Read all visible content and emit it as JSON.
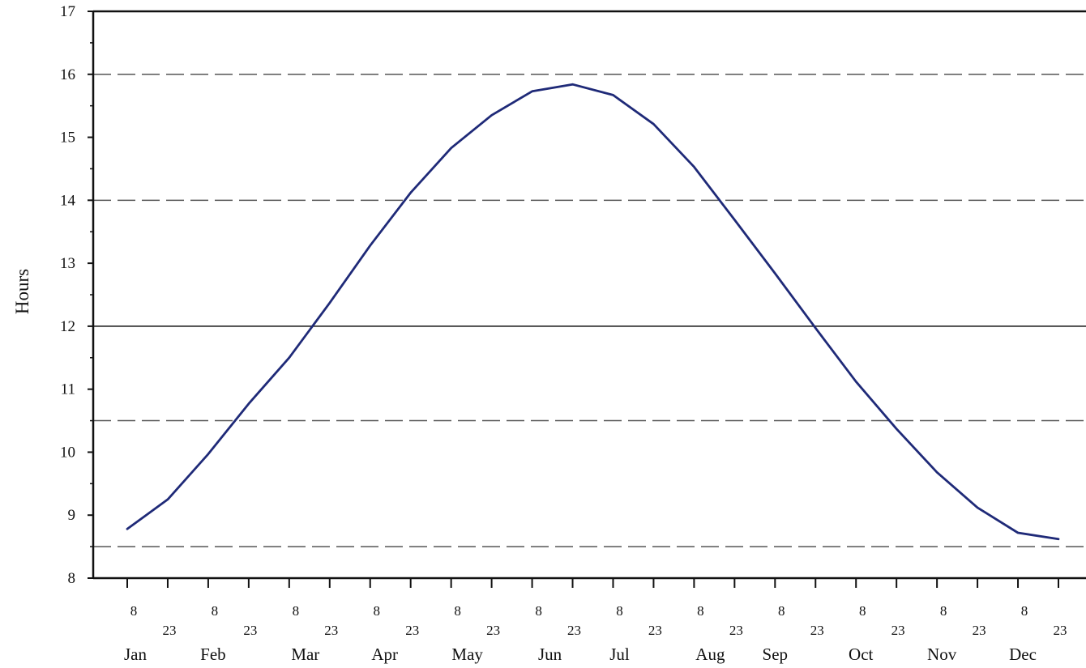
{
  "chart_data": {
    "type": "line",
    "title": "",
    "xlabel": "",
    "ylabel": "Hours",
    "ylim": [
      8,
      17
    ],
    "yticks": [
      "8",
      "9",
      "10",
      "11",
      "12",
      "13",
      "14",
      "15",
      "16",
      "17"
    ],
    "x_tick_days": [
      "8",
      "23",
      "8",
      "23",
      "8",
      "23",
      "8",
      "23",
      "8",
      "23",
      "8",
      "23",
      "8",
      "23",
      "8",
      "23",
      "8",
      "23",
      "8",
      "23",
      "8",
      "23",
      "8",
      "23"
    ],
    "months": [
      "Jan",
      "Feb",
      "Mar",
      "Apr",
      "May",
      "Jun",
      "Jul",
      "Aug",
      "Sep",
      "Oct",
      "Nov",
      "Dec"
    ],
    "reference_lines": [
      {
        "y": 16,
        "style": "dashed"
      },
      {
        "y": 14,
        "style": "dashed"
      },
      {
        "y": 12,
        "style": "solid"
      },
      {
        "y": 10.5,
        "style": "dashed"
      },
      {
        "y": 8.5,
        "style": "dashed"
      }
    ],
    "grid": false,
    "series": [
      {
        "x": [
          "Jan 8",
          "Jan 23",
          "Feb 8",
          "Feb 23",
          "Mar 8",
          "Mar 23",
          "Apr 8",
          "Apr 23",
          "May 8",
          "May 23",
          "Jun 8",
          "Jun 23",
          "Jul 8",
          "Jul 23",
          "Aug 8",
          "Aug 23",
          "Sep 8",
          "Sep 23",
          "Oct 8",
          "Oct 23",
          "Nov 8",
          "Nov 23",
          "Dec 8",
          "Dec 23"
        ],
        "values": [
          8.78,
          9.25,
          9.97,
          10.77,
          11.5,
          12.37,
          13.28,
          14.12,
          14.83,
          15.35,
          15.73,
          15.84,
          15.67,
          15.21,
          14.53,
          13.69,
          12.84,
          11.97,
          11.12,
          10.37,
          9.68,
          9.12,
          8.72,
          8.62
        ],
        "color": "#1f2a78"
      }
    ]
  }
}
